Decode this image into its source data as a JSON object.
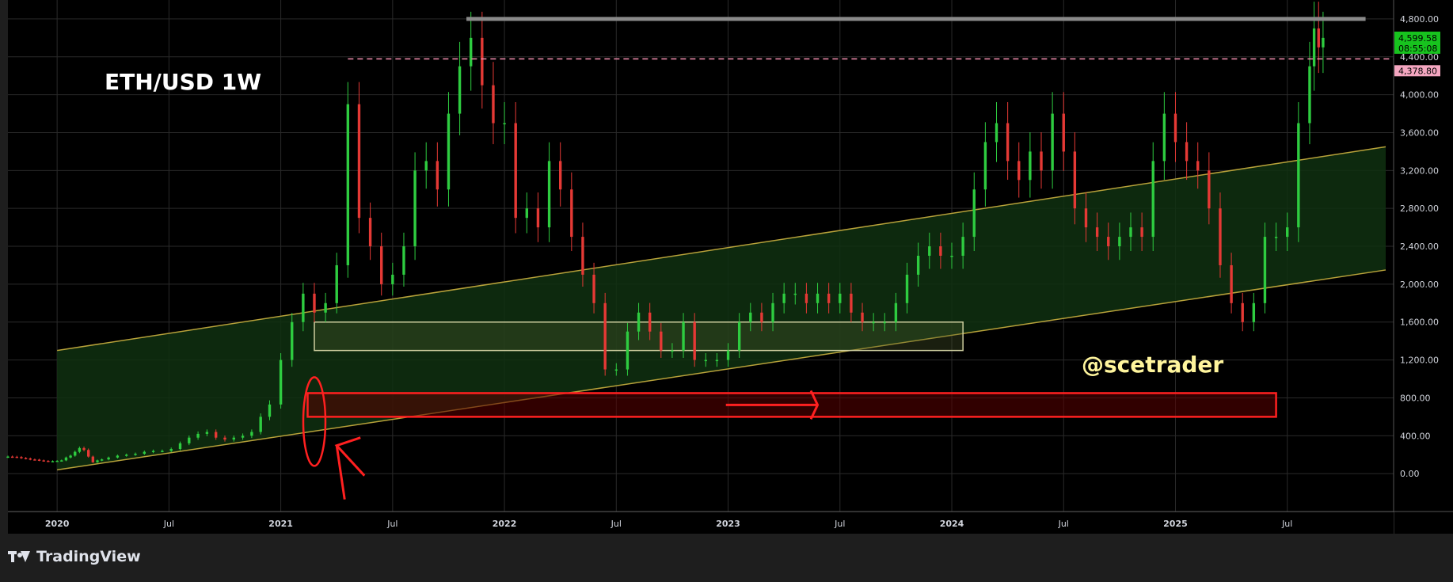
{
  "chart_data": {
    "type": "candlestick",
    "title": "ETH/USD  1W",
    "symbol": "ETH/USD",
    "interval": "1W",
    "watermark": "@scetrader",
    "x_ticks": [
      "2020",
      "Jul",
      "2021",
      "Jul",
      "2022",
      "Jul",
      "2023",
      "Jul",
      "2024",
      "Jul",
      "2025",
      "Jul"
    ],
    "y_ticks": [
      "0.00",
      "400.00",
      "800.00",
      "1,200.00",
      "1,600.00",
      "2,000.00",
      "2,400.00",
      "2,800.00",
      "3,200.00",
      "3,600.00",
      "4,000.00",
      "4,400.00",
      "4,800.00"
    ],
    "ylim": [
      -400,
      5000
    ],
    "xlim": [
      2019.78,
      2025.94
    ],
    "grid": true,
    "price_labels": {
      "current_price": "4,599.58",
      "countdown": "08:55:08",
      "resistance": "4,378.80"
    },
    "colors": {
      "background": "#000000",
      "up": "#2ecc40",
      "down": "#e53935",
      "channel_line": "#b8a23a",
      "channel_fill": "#0f3010",
      "red_zone": "#ff2020",
      "box_outline": "#cfcfa0"
    },
    "series": [
      {
        "name": "ETH/USD weekly",
        "x": [
          2019.78,
          2019.8,
          2019.82,
          2019.84,
          2019.86,
          2019.88,
          2019.9,
          2019.92,
          2019.94,
          2019.96,
          2019.98,
          2020.0,
          2020.02,
          2020.04,
          2020.06,
          2020.08,
          2020.1,
          2020.12,
          2020.14,
          2020.16,
          2020.18,
          2020.2,
          2020.23,
          2020.27,
          2020.31,
          2020.35,
          2020.39,
          2020.43,
          2020.47,
          2020.51,
          2020.55,
          2020.59,
          2020.63,
          2020.67,
          2020.71,
          2020.75,
          2020.79,
          2020.83,
          2020.87,
          2020.91,
          2020.95,
          2021.0,
          2021.05,
          2021.1,
          2021.15,
          2021.2,
          2021.25,
          2021.3,
          2021.35,
          2021.4,
          2021.45,
          2021.5,
          2021.55,
          2021.6,
          2021.65,
          2021.7,
          2021.75,
          2021.8,
          2021.85,
          2021.9,
          2021.95,
          2022.0,
          2022.05,
          2022.1,
          2022.15,
          2022.2,
          2022.25,
          2022.3,
          2022.35,
          2022.4,
          2022.45,
          2022.5,
          2022.55,
          2022.6,
          2022.65,
          2022.7,
          2022.75,
          2022.8,
          2022.85,
          2022.9,
          2022.95,
          2023.0,
          2023.05,
          2023.1,
          2023.15,
          2023.2,
          2023.25,
          2023.3,
          2023.35,
          2023.4,
          2023.45,
          2023.5,
          2023.55,
          2023.6,
          2023.65,
          2023.7,
          2023.75,
          2023.8,
          2023.85,
          2023.9,
          2023.95,
          2024.0,
          2024.05,
          2024.1,
          2024.15,
          2024.2,
          2024.25,
          2024.3,
          2024.35,
          2024.4,
          2024.45,
          2024.5,
          2024.55,
          2024.6,
          2024.65,
          2024.7,
          2024.75,
          2024.8,
          2024.85,
          2024.9,
          2024.95,
          2025.0,
          2025.05,
          2025.1,
          2025.15,
          2025.2,
          2025.25,
          2025.3,
          2025.35,
          2025.4,
          2025.45,
          2025.5,
          2025.55,
          2025.6,
          2025.62,
          2025.64,
          2025.66
        ],
        "close": [
          180,
          178,
          175,
          165,
          160,
          150,
          148,
          140,
          135,
          130,
          132,
          135,
          140,
          170,
          190,
          230,
          270,
          250,
          180,
          120,
          140,
          150,
          170,
          190,
          200,
          210,
          230,
          240,
          240,
          260,
          320,
          380,
          420,
          440,
          380,
          360,
          380,
          400,
          440,
          600,
          730,
          1200,
          1600,
          1900,
          1700,
          1800,
          2200,
          3900,
          2700,
          2400,
          2000,
          2100,
          2400,
          3200,
          3300,
          3000,
          3800,
          4300,
          4600,
          4100,
          3700,
          3700,
          2700,
          2800,
          2600,
          3300,
          3000,
          2500,
          2100,
          1800,
          1100,
          1100,
          1500,
          1700,
          1500,
          1300,
          1300,
          1600,
          1200,
          1200,
          1200,
          1300,
          1600,
          1700,
          1600,
          1800,
          1900,
          1900,
          1800,
          1900,
          1800,
          1900,
          1700,
          1600,
          1600,
          1600,
          1800,
          2100,
          2300,
          2400,
          2300,
          2300,
          2500,
          3000,
          3500,
          3700,
          3300,
          3100,
          3400,
          3200,
          3800,
          3400,
          2800,
          2600,
          2500,
          2400,
          2500,
          2600,
          2500,
          3300,
          3800,
          3500,
          3300,
          3200,
          2800,
          2200,
          1800,
          1600,
          1800,
          2500,
          2500,
          2600,
          3700,
          4300,
          4700,
          4500,
          4600
        ]
      }
    ],
    "annotations": {
      "channel_upper": [
        [
          2020.0,
          1300
        ],
        [
          2025.94,
          3450
        ]
      ],
      "channel_lower": [
        [
          2020.0,
          40
        ],
        [
          2025.94,
          2150
        ]
      ],
      "consolidation_box": {
        "x": [
          2021.15,
          2024.05
        ],
        "y": [
          1300,
          1600
        ]
      },
      "support_zone": {
        "x": [
          2021.12,
          2025.45
        ],
        "y": [
          600,
          850
        ]
      },
      "resistance_top": 4800,
      "resistance_dashed": 4378.8
    }
  }
}
